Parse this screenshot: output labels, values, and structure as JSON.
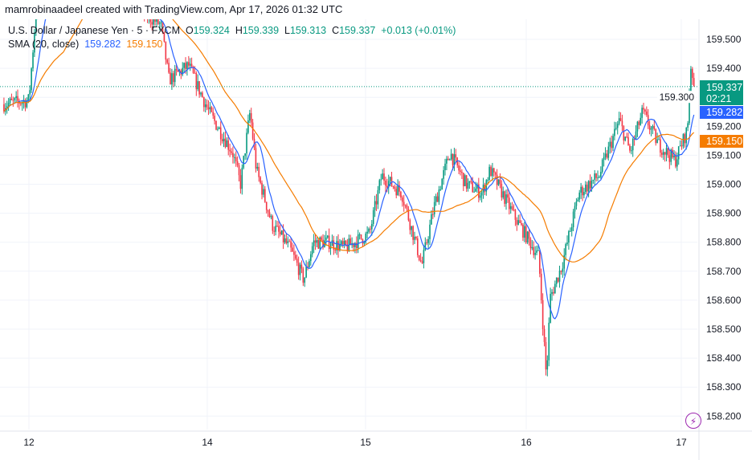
{
  "header": {
    "credit": "mamrobinaadeel created with TradingView.com, Apr 17, 2026 01:32 UTC"
  },
  "legend": {
    "symbol": "U.S. Dollar / Japanese Yen · 5 · FXCM",
    "o_label": "O",
    "o": "159.324",
    "h_label": "H",
    "h": "159.339",
    "l_label": "L",
    "l": "159.313",
    "c_label": "C",
    "c": "159.337",
    "change": "+0.013 (+0.01%)",
    "indicator": "SMA (20, close)",
    "sma_blue": "159.282",
    "sma_orange": "159.150"
  },
  "price_labels": {
    "last": "159.337",
    "countdown": "02:21",
    "sma_blue": "159.282",
    "sma_orange": "159.150"
  },
  "icons": {
    "bolt": "lightning-icon"
  },
  "colors": {
    "up": "#089981",
    "down": "#f23645",
    "sma_blue": "#2962ff",
    "sma_orange": "#f57c00",
    "accent": "#9c27b0"
  },
  "chart_data": {
    "type": "candlestick",
    "symbol": "USDJPY",
    "timeframe": "5",
    "ylim": [
      158.15,
      159.55
    ],
    "y_ticks": [
      "159.500",
      "159.400",
      "159.300",
      "159.200",
      "159.100",
      "159.000",
      "158.900",
      "158.800",
      "158.700",
      "158.600",
      "158.500",
      "158.400",
      "158.300",
      "158.200"
    ],
    "x_ticks": [
      "12",
      "14",
      "15",
      "16",
      "17"
    ],
    "x_tick_days": [
      12,
      14,
      15,
      16,
      17
    ],
    "grid": true,
    "last_price": 159.337,
    "approx_price_path": [
      [
        11.72,
        159.276
      ],
      [
        12.0,
        159.29
      ],
      [
        12.08,
        159.6
      ],
      [
        12.5,
        159.65
      ],
      [
        13.0,
        159.65
      ],
      [
        13.48,
        159.55
      ],
      [
        13.57,
        159.36
      ],
      [
        13.79,
        159.41
      ],
      [
        14.01,
        159.25
      ],
      [
        14.16,
        159.11
      ],
      [
        14.21,
        159.0
      ],
      [
        14.27,
        159.25
      ],
      [
        14.31,
        159.05
      ],
      [
        14.41,
        158.86
      ],
      [
        14.52,
        158.78
      ],
      [
        14.61,
        158.67
      ],
      [
        14.67,
        158.8
      ],
      [
        14.77,
        158.8
      ],
      [
        14.87,
        158.78
      ],
      [
        15.025,
        158.83
      ],
      [
        15.1,
        159.03
      ],
      [
        15.225,
        158.97
      ],
      [
        15.35,
        158.72
      ],
      [
        15.425,
        158.92
      ],
      [
        15.525,
        159.11
      ],
      [
        15.625,
        159.0
      ],
      [
        15.725,
        158.97
      ],
      [
        15.775,
        159.05
      ],
      [
        15.925,
        158.89
      ],
      [
        16.08,
        158.75
      ],
      [
        16.13,
        158.33
      ],
      [
        16.155,
        158.61
      ],
      [
        16.23,
        158.72
      ],
      [
        16.34,
        158.97
      ],
      [
        16.47,
        159.03
      ],
      [
        16.6,
        159.22
      ],
      [
        16.67,
        159.11
      ],
      [
        16.75,
        159.25
      ],
      [
        16.85,
        159.14
      ],
      [
        16.96,
        159.08
      ],
      [
        17.04,
        159.19
      ],
      [
        17.06,
        159.41
      ],
      [
        17.09,
        159.337
      ]
    ]
  }
}
